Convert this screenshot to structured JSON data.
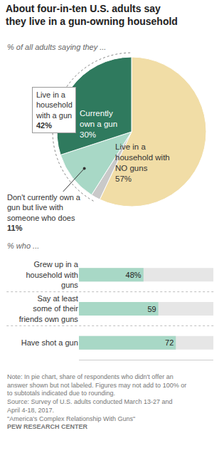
{
  "chart_data": [
    {
      "type": "pie",
      "title": "About four-in-ten U.S. adults say they live in a gun-owning household",
      "subtitle": "% of all adults saying they ...",
      "categories": [
        "Live in a household with NO guns",
        null,
        "Don't currently own a gun but live with someone who does",
        "Currently own a gun"
      ],
      "values": [
        57,
        2,
        11,
        30
      ],
      "value_labels": [
        "57%",
        null,
        "11%",
        "30%"
      ],
      "colors": [
        "#f1dda6",
        "#c9c9c9",
        "#a8d8c6",
        "#2f7a5e"
      ],
      "annotations": [
        {
          "text": "Live in a household with a gun",
          "value": 42,
          "value_label": "42%"
        }
      ],
      "data_labels": true
    },
    {
      "type": "bar",
      "orientation": "horizontal",
      "subtitle": "% who ...",
      "categories": [
        "Grew up in a household with guns",
        "Say at least some of their friends own guns",
        "Have shot a gun"
      ],
      "values": [
        48,
        59,
        72
      ],
      "value_labels": [
        "48%",
        "59",
        "72"
      ],
      "color": "#a8d8c6",
      "xlim": [
        0,
        100
      ],
      "tick_labels": "y",
      "data_labels": true,
      "notes": [
        "Note: In pie chart, share of respondents who didn't offer an answer shown but not labeled. Figures may not add to 100% or to subtotals indicated due to rounding.",
        "Source: Survey of U.S. adults conducted March 13-27 and April 4-18, 2017.",
        "\"America's Complex Relationship With Guns\""
      ],
      "credit": "PEW RESEARCH CENTER"
    }
  ]
}
